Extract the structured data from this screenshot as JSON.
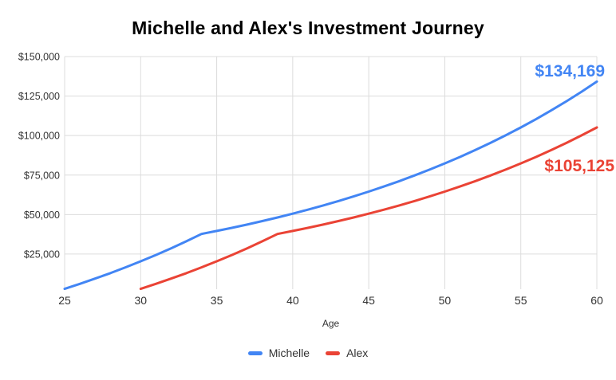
{
  "chart_data": {
    "type": "line",
    "title": "Michelle and Alex's Investment Journey",
    "xlabel": "Age",
    "ylabel": "",
    "xlim": [
      25,
      60
    ],
    "ylim": [
      0,
      150000
    ],
    "grid": true,
    "legend_position": "bottom",
    "x_ticks": [
      25,
      30,
      35,
      40,
      45,
      50,
      55,
      60
    ],
    "y_tick_values": [
      25000,
      50000,
      75000,
      100000,
      125000,
      150000
    ],
    "y_tick_labels": [
      "$25,000",
      "$50,000",
      "$75,000",
      "$100,000",
      "$125,000",
      "$150,000"
    ],
    "colors": {
      "michelle": "#4285f4",
      "alex": "#ea4335",
      "gridline": "#dcdcdc",
      "axis_text": "#333333",
      "title_text": "#000000"
    },
    "series": [
      {
        "name": "Michelle",
        "color": "#4285f4",
        "end_label": "$134,169",
        "x": [
          25,
          26,
          27,
          28,
          29,
          30,
          31,
          32,
          33,
          34,
          35,
          36,
          37,
          38,
          39,
          40,
          41,
          42,
          43,
          44,
          45,
          46,
          47,
          48,
          49,
          50,
          51,
          52,
          53,
          54,
          55,
          56,
          57,
          58,
          59,
          60
        ],
        "values": [
          3000,
          6150,
          9458,
          12930,
          16577,
          20406,
          24426,
          28647,
          33080,
          37734,
          39620,
          41601,
          43681,
          45866,
          48159,
          50567,
          53095,
          55750,
          58537,
          61464,
          64537,
          67764,
          71152,
          74710,
          78446,
          82368,
          86486,
          90811,
          95351,
          100119,
          105125,
          110381,
          115900,
          121695,
          127780,
          134169
        ]
      },
      {
        "name": "Alex",
        "color": "#ea4335",
        "end_label": "$105,125",
        "x": [
          30,
          31,
          32,
          33,
          34,
          35,
          36,
          37,
          38,
          39,
          40,
          41,
          42,
          43,
          44,
          45,
          46,
          47,
          48,
          49,
          50,
          51,
          52,
          53,
          54,
          55,
          56,
          57,
          58,
          59,
          60
        ],
        "values": [
          3000,
          6150,
          9458,
          12930,
          16577,
          20406,
          24426,
          28647,
          33080,
          37734,
          39620,
          41601,
          43681,
          45866,
          48159,
          50567,
          53095,
          55750,
          58537,
          61464,
          64537,
          67764,
          71152,
          74710,
          78446,
          82368,
          86486,
          90811,
          95351,
          100119,
          105125
        ]
      }
    ]
  }
}
